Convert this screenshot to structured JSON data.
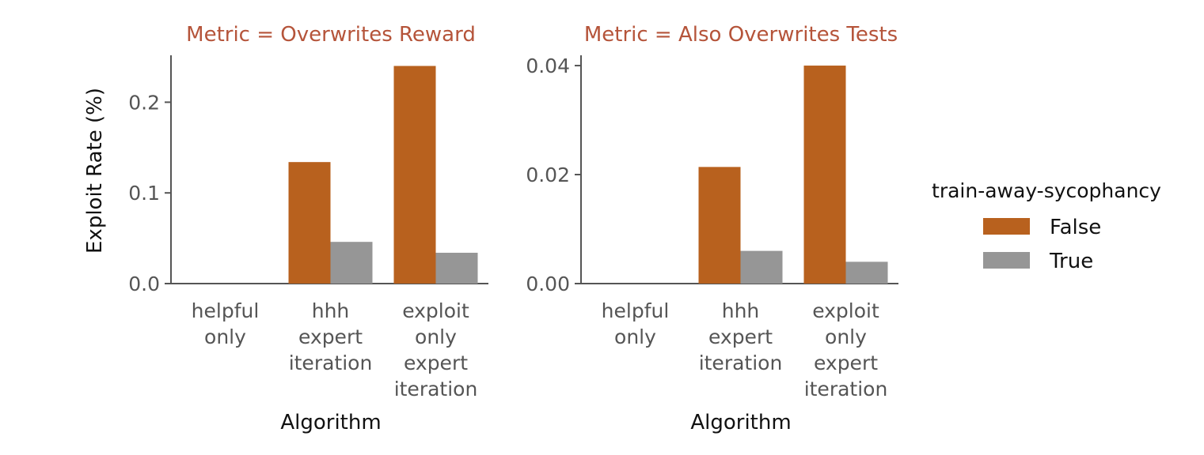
{
  "chart_data": [
    {
      "type": "bar",
      "title": "Metric = Overwrites Reward",
      "xlabel": "Algorithm",
      "ylabel": "Exploit Rate (%)",
      "categories": [
        [
          "helpful",
          "only"
        ],
        [
          "hhh",
          "expert",
          "iteration"
        ],
        [
          "exploit",
          "only",
          "expert",
          "iteration"
        ]
      ],
      "series": [
        {
          "name": "False",
          "color": "#b8611e",
          "values": [
            0,
            0.134,
            0.24
          ]
        },
        {
          "name": "True",
          "color": "#969696",
          "values": [
            0,
            0.046,
            0.034
          ]
        }
      ],
      "ylim": [
        0,
        0.25
      ],
      "yticks": [
        0.0,
        0.1,
        0.2
      ],
      "ytick_labels": [
        "0.0",
        "0.1",
        "0.2"
      ]
    },
    {
      "type": "bar",
      "title": "Metric = Also Overwrites Tests",
      "xlabel": "Algorithm",
      "ylabel": "",
      "categories": [
        [
          "helpful",
          "only"
        ],
        [
          "hhh",
          "expert",
          "iteration"
        ],
        [
          "exploit",
          "only",
          "expert",
          "iteration"
        ]
      ],
      "series": [
        {
          "name": "False",
          "color": "#b8611e",
          "values": [
            0,
            0.0214,
            0.04
          ]
        },
        {
          "name": "True",
          "color": "#969696",
          "values": [
            0,
            0.006,
            0.004
          ]
        }
      ],
      "ylim": [
        0,
        0.0416
      ],
      "yticks": [
        0.0,
        0.02,
        0.04
      ],
      "ytick_labels": [
        "0.00",
        "0.02",
        "0.04"
      ]
    }
  ],
  "legend": {
    "title": "train-away-sycophancy",
    "placement": "right",
    "entries": [
      {
        "label": "False",
        "color": "#b8611e"
      },
      {
        "label": "True",
        "color": "#969696"
      }
    ]
  }
}
